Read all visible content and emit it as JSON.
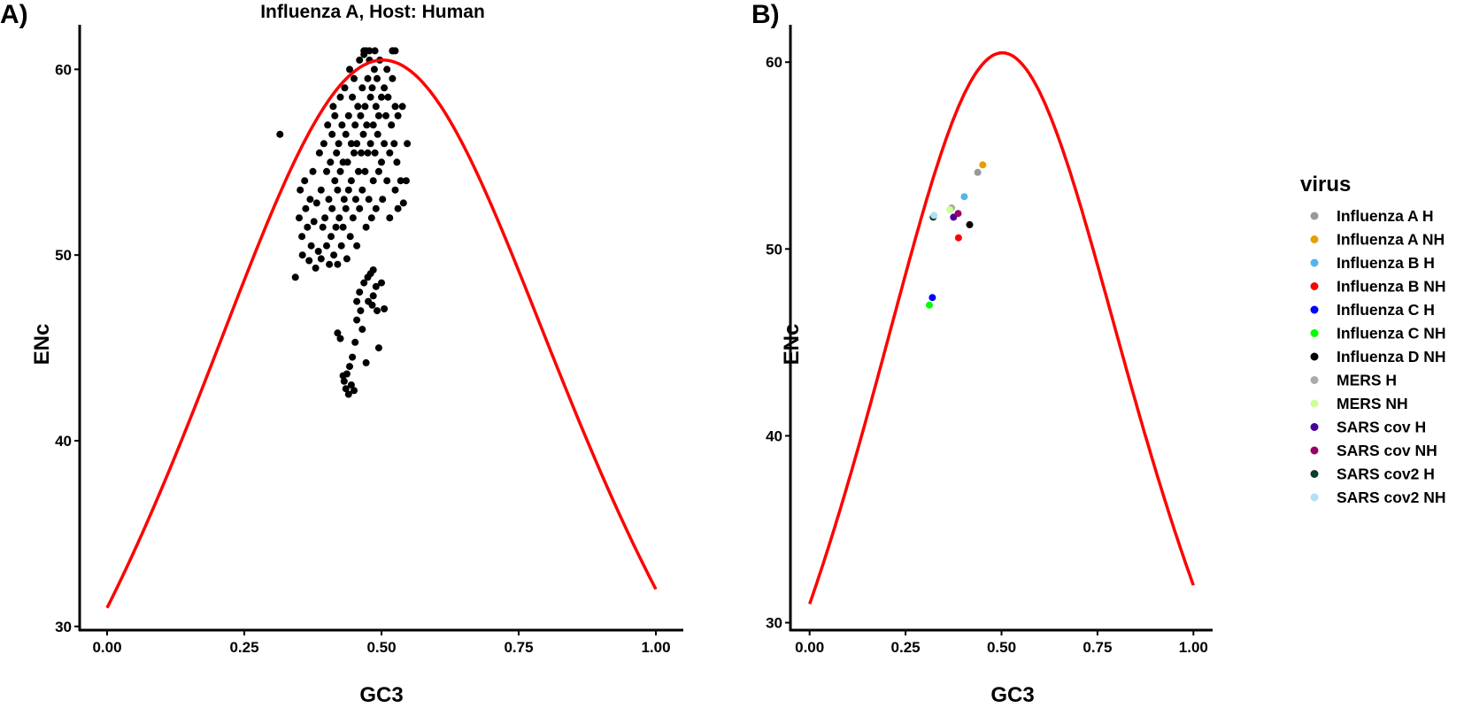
{
  "chart_data": [
    {
      "type": "scatter",
      "panel_label": "A)",
      "title": "Influenza A, Host: Human",
      "xlabel": "GC3",
      "ylabel": "ENc",
      "xlim": [
        -0.05,
        1.05
      ],
      "ylim": [
        29.8,
        62.4
      ],
      "xticks": [
        0.0,
        0.25,
        0.5,
        0.75,
        1.0
      ],
      "xtick_labels": [
        "0.00",
        "0.25",
        "0.50",
        "0.75",
        "1.00"
      ],
      "yticks": [
        30,
        40,
        50,
        60
      ],
      "ytick_labels": [
        "30",
        "40",
        "50",
        "60"
      ],
      "grid": false,
      "point_color": "#000000",
      "curve_color": "#ff0000",
      "curve": "ENc = 2 + GC3 + 29/(GC3^2 + (1-GC3)^2)",
      "series": [
        {
          "points": [
            [
              0.315,
              56.5
            ],
            [
              0.343,
              48.8
            ],
            [
              0.35,
              52.0
            ],
            [
              0.352,
              53.5
            ],
            [
              0.355,
              51.0
            ],
            [
              0.356,
              50.0
            ],
            [
              0.36,
              54.0
            ],
            [
              0.362,
              52.5
            ],
            [
              0.365,
              51.5
            ],
            [
              0.368,
              49.7
            ],
            [
              0.37,
              53.0
            ],
            [
              0.372,
              50.5
            ],
            [
              0.375,
              54.5
            ],
            [
              0.377,
              51.8
            ],
            [
              0.38,
              49.3
            ],
            [
              0.382,
              52.8
            ],
            [
              0.385,
              50.2
            ],
            [
              0.387,
              55.5
            ],
            [
              0.39,
              53.5
            ],
            [
              0.39,
              49.8
            ],
            [
              0.393,
              51.5
            ],
            [
              0.395,
              56.0
            ],
            [
              0.397,
              52.0
            ],
            [
              0.4,
              54.5
            ],
            [
              0.4,
              50.5
            ],
            [
              0.402,
              57.0
            ],
            [
              0.404,
              53.0
            ],
            [
              0.405,
              49.5
            ],
            [
              0.407,
              55.0
            ],
            [
              0.408,
              51.0
            ],
            [
              0.41,
              56.5
            ],
            [
              0.41,
              52.5
            ],
            [
              0.412,
              58.0
            ],
            [
              0.413,
              50.0
            ],
            [
              0.415,
              54.0
            ],
            [
              0.415,
              57.5
            ],
            [
              0.417,
              51.5
            ],
            [
              0.418,
              55.5
            ],
            [
              0.42,
              53.5
            ],
            [
              0.42,
              49.5
            ],
            [
              0.422,
              56.0
            ],
            [
              0.423,
              52.0
            ],
            [
              0.425,
              58.5
            ],
            [
              0.425,
              54.5
            ],
            [
              0.427,
              50.5
            ],
            [
              0.428,
              57.0
            ],
            [
              0.43,
              55.0
            ],
            [
              0.43,
              51.5
            ],
            [
              0.432,
              53.0
            ],
            [
              0.433,
              59.0
            ],
            [
              0.435,
              56.5
            ],
            [
              0.435,
              52.5
            ],
            [
              0.437,
              49.8
            ],
            [
              0.438,
              55.0
            ],
            [
              0.44,
              57.5
            ],
            [
              0.44,
              53.5
            ],
            [
              0.442,
              60.0
            ],
            [
              0.443,
              51.0
            ],
            [
              0.445,
              56.0
            ],
            [
              0.445,
              54.0
            ],
            [
              0.447,
              58.5
            ],
            [
              0.448,
              52.0
            ],
            [
              0.45,
              55.5
            ],
            [
              0.45,
              59.5
            ],
            [
              0.452,
              57.0
            ],
            [
              0.453,
              53.0
            ],
            [
              0.455,
              56.0
            ],
            [
              0.455,
              50.5
            ],
            [
              0.457,
              58.0
            ],
            [
              0.458,
              54.5
            ],
            [
              0.46,
              60.5
            ],
            [
              0.46,
              52.5
            ],
            [
              0.462,
              57.5
            ],
            [
              0.463,
              55.5
            ],
            [
              0.465,
              59.0
            ],
            [
              0.465,
              53.5
            ],
            [
              0.467,
              56.5
            ],
            [
              0.468,
              61.0
            ],
            [
              0.47,
              58.0
            ],
            [
              0.47,
              54.5
            ],
            [
              0.472,
              51.5
            ],
            [
              0.473,
              57.0
            ],
            [
              0.475,
              59.5
            ],
            [
              0.475,
              55.5
            ],
            [
              0.477,
              53.0
            ],
            [
              0.478,
              60.5
            ],
            [
              0.48,
              58.5
            ],
            [
              0.48,
              56.0
            ],
            [
              0.482,
              52.0
            ],
            [
              0.483,
              59.0
            ],
            [
              0.485,
              57.0
            ],
            [
              0.485,
              54.0
            ],
            [
              0.487,
              60.0
            ],
            [
              0.488,
              55.5
            ],
            [
              0.49,
              58.0
            ],
            [
              0.49,
              52.5
            ],
            [
              0.492,
              59.5
            ],
            [
              0.493,
              56.5
            ],
            [
              0.495,
              57.5
            ],
            [
              0.495,
              54.5
            ],
            [
              0.497,
              60.5
            ],
            [
              0.5,
              58.5
            ],
            [
              0.5,
              55.0
            ],
            [
              0.502,
              53.0
            ],
            [
              0.505,
              59.0
            ],
            [
              0.505,
              56.0
            ],
            [
              0.508,
              57.5
            ],
            [
              0.51,
              60.0
            ],
            [
              0.51,
              54.0
            ],
            [
              0.512,
              58.5
            ],
            [
              0.515,
              55.5
            ],
            [
              0.515,
              52.0
            ],
            [
              0.518,
              57.0
            ],
            [
              0.52,
              59.5
            ],
            [
              0.52,
              61.0
            ],
            [
              0.523,
              56.0
            ],
            [
              0.525,
              53.5
            ],
            [
              0.525,
              58.0
            ],
            [
              0.528,
              55.0
            ],
            [
              0.53,
              57.5
            ],
            [
              0.53,
              52.5
            ],
            [
              0.535,
              54.0
            ],
            [
              0.538,
              58.0
            ],
            [
              0.54,
              52.8
            ],
            [
              0.545,
              54.0
            ],
            [
              0.547,
              56.0
            ],
            [
              0.42,
              45.8
            ],
            [
              0.425,
              45.5
            ],
            [
              0.43,
              43.5
            ],
            [
              0.432,
              43.2
            ],
            [
              0.435,
              42.8
            ],
            [
              0.437,
              43.6
            ],
            [
              0.44,
              42.5
            ],
            [
              0.442,
              44.0
            ],
            [
              0.445,
              43.0
            ],
            [
              0.447,
              44.5
            ],
            [
              0.45,
              42.7
            ],
            [
              0.452,
              45.3
            ],
            [
              0.455,
              46.5
            ],
            [
              0.455,
              47.5
            ],
            [
              0.46,
              48.0
            ],
            [
              0.462,
              47.0
            ],
            [
              0.465,
              46.0
            ],
            [
              0.468,
              48.5
            ],
            [
              0.472,
              44.2
            ],
            [
              0.476,
              47.5
            ],
            [
              0.48,
              49.0
            ],
            [
              0.483,
              47.3
            ],
            [
              0.485,
              47.8
            ],
            [
              0.49,
              48.3
            ],
            [
              0.492,
              47.0
            ],
            [
              0.495,
              45.0
            ],
            [
              0.5,
              48.5
            ],
            [
              0.505,
              47.1
            ],
            [
              0.485,
              49.2
            ],
            [
              0.475,
              48.8
            ],
            [
              0.488,
              61.0
            ],
            [
              0.478,
              61.0
            ],
            [
              0.468,
              60.8
            ],
            [
              0.52,
              61.0
            ],
            [
              0.525,
              61.0
            ],
            [
              0.472,
              61.0
            ]
          ]
        }
      ]
    },
    {
      "type": "scatter",
      "panel_label": "B)",
      "title": "",
      "xlabel": "GC3",
      "ylabel": "ENc",
      "xlim": [
        -0.05,
        1.05
      ],
      "ylim": [
        29.6,
        62.0
      ],
      "xticks": [
        0.0,
        0.25,
        0.5,
        0.75,
        1.0
      ],
      "xtick_labels": [
        "0.00",
        "0.25",
        "0.50",
        "0.75",
        "1.00"
      ],
      "yticks": [
        30,
        40,
        50,
        60
      ],
      "ytick_labels": [
        "30",
        "40",
        "50",
        "60"
      ],
      "grid": false,
      "curve_color": "#ff0000",
      "curve": "ENc = 2 + GC3 + 29/(GC3^2 + (1-GC3)^2)",
      "legend": {
        "title": "virus",
        "position": "right"
      },
      "series": [
        {
          "name": "Influenza A H",
          "color": "#999999",
          "x": 0.438,
          "y": 54.1
        },
        {
          "name": "Influenza A NH",
          "color": "#e69f00",
          "x": 0.451,
          "y": 54.5
        },
        {
          "name": "Influenza B H",
          "color": "#56b4e9",
          "x": 0.403,
          "y": 52.8
        },
        {
          "name": "Influenza B NH",
          "color": "#ff0000",
          "x": 0.388,
          "y": 50.6
        },
        {
          "name": "Influenza C H",
          "color": "#0000ff",
          "x": 0.32,
          "y": 47.4
        },
        {
          "name": "Influenza C NH",
          "color": "#00ff00",
          "x": 0.312,
          "y": 47.0
        },
        {
          "name": "Influenza D NH",
          "color": "#000000",
          "x": 0.417,
          "y": 51.3
        },
        {
          "name": "MERS H",
          "color": "#aaaaaa",
          "x": 0.37,
          "y": 52.2
        },
        {
          "name": "MERS NH",
          "color": "#ccff99",
          "x": 0.365,
          "y": 52.1
        },
        {
          "name": "SARS cov H",
          "color": "#4b0099",
          "x": 0.375,
          "y": 51.7
        },
        {
          "name": "SARS cov NH",
          "color": "#990066",
          "x": 0.387,
          "y": 51.9
        },
        {
          "name": "SARS cov2 H",
          "color": "#0b3d2e",
          "x": 0.322,
          "y": 51.7
        },
        {
          "name": "SARS cov2 NH",
          "color": "#b3dff2",
          "x": 0.324,
          "y": 51.8
        }
      ]
    }
  ]
}
